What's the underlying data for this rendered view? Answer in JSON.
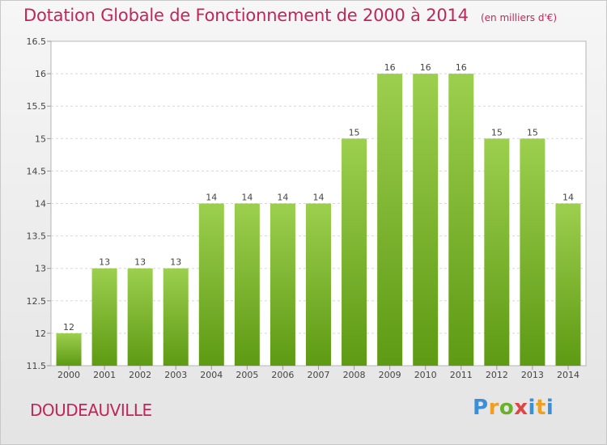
{
  "header": {
    "title": "Dotation Globale de Fonctionnement de 2000 à 2014",
    "subtitle": "(en milliers d'€)"
  },
  "commune": "DOUDEAUVILLE",
  "logo": {
    "text": "Proxiti"
  },
  "colors": {
    "accent": "#c0265a",
    "bar_light": "#9ccf4e",
    "bar_dark": "#5e9a14"
  },
  "chart_data": {
    "type": "bar",
    "categories": [
      "2000",
      "2001",
      "2002",
      "2003",
      "2004",
      "2005",
      "2006",
      "2007",
      "2008",
      "2009",
      "2010",
      "2011",
      "2012",
      "2013",
      "2014"
    ],
    "values": [
      12,
      13,
      13,
      13,
      14,
      14,
      14,
      14,
      15,
      16,
      16,
      16,
      15,
      15,
      14
    ],
    "data_labels": [
      "12",
      "13",
      "13",
      "13",
      "14",
      "14",
      "14",
      "14",
      "15",
      "16",
      "16",
      "16",
      "15",
      "15",
      "14"
    ],
    "ylim": [
      11.5,
      16.5
    ],
    "yticks": [
      11.5,
      12,
      12.5,
      13,
      13.5,
      14,
      14.5,
      15,
      15.5,
      16,
      16.5
    ],
    "ytick_labels": [
      "11.5",
      "12",
      "12.5",
      "13",
      "13.5",
      "14",
      "14.5",
      "15",
      "15.5",
      "16",
      "16.5"
    ],
    "grid": true,
    "legend": "none"
  }
}
